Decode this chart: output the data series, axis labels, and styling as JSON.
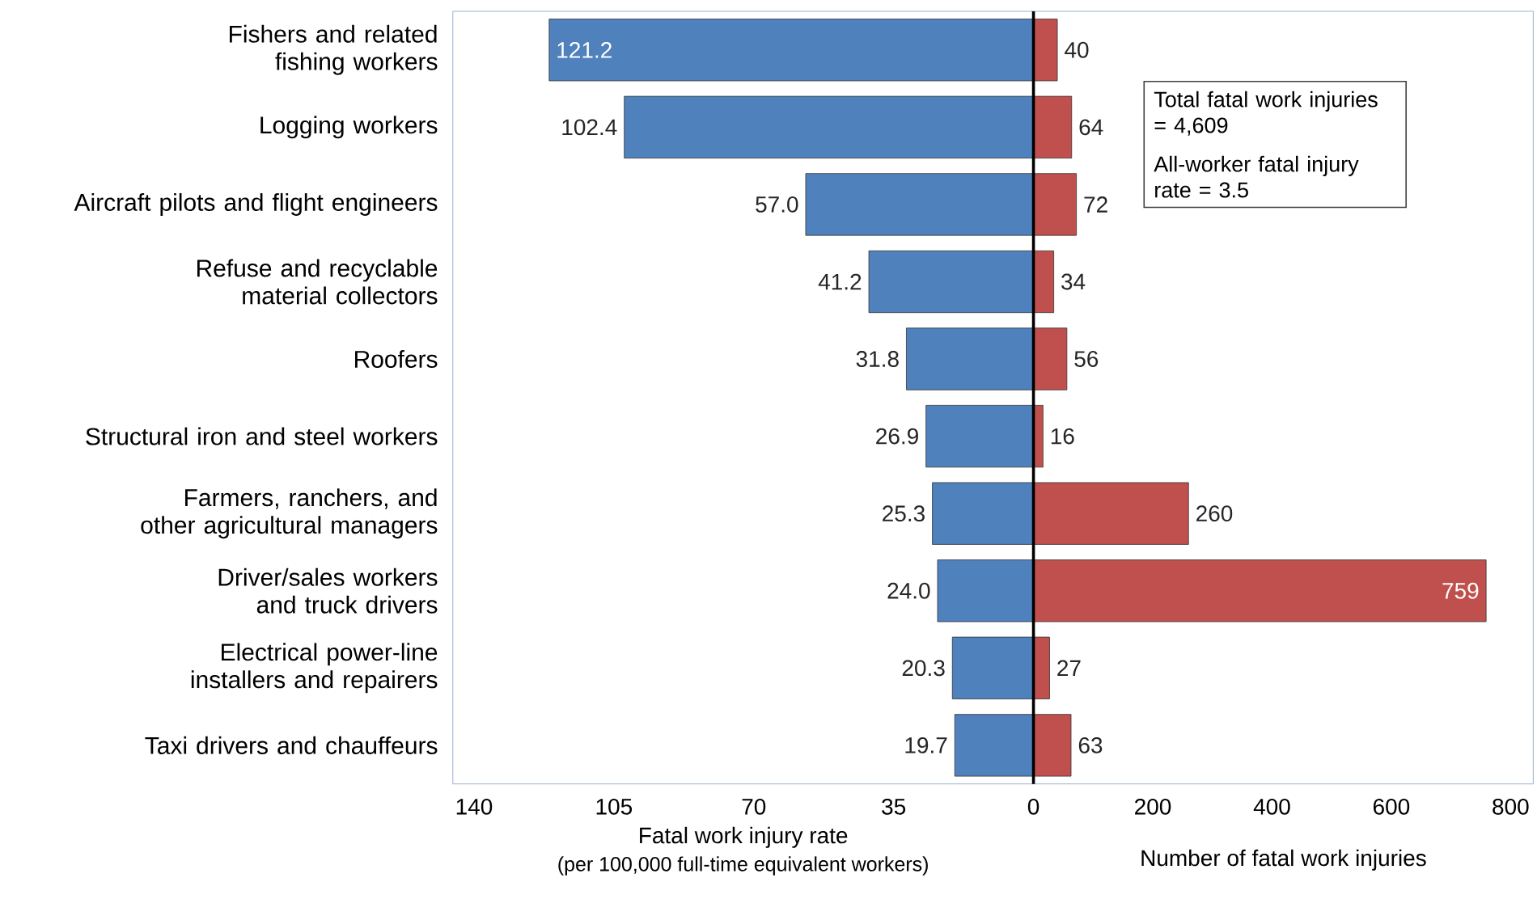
{
  "chart_data": [
    {
      "type": "bar",
      "orientation": "horizontal",
      "xlabel": "Fatal work injury rate",
      "categories": [
        "Fishers and related fishing workers",
        "Logging workers",
        "Aircraft pilots and flight engineers",
        "Refuse and recyclable material collectors",
        "Roofers",
        "Structural iron and steel workers",
        "Farmers, ranchers, and other agricultural managers",
        "Driver/sales workers and truck drivers",
        "Electrical power-line installers and repairers",
        "Taxi drivers and chauffeurs"
      ],
      "values": [
        121.2,
        102.4,
        57.0,
        41.2,
        31.8,
        26.9,
        25.3,
        24.0,
        20.3,
        19.7
      ],
      "value_labels": [
        "121.2",
        "102.4",
        "57.0",
        "41.2",
        "31.8",
        "26.9",
        "25.3",
        "24.0",
        "20.3",
        "19.7"
      ],
      "color": "#4f81bd",
      "xlim": [
        145.3,
        0
      ],
      "xticks": [
        140,
        105,
        70,
        35
      ],
      "annotations": [
        "(per 100,000 full-time equivalent workers)"
      ]
    },
    {
      "type": "bar",
      "orientation": "horizontal",
      "xlabel": "Number of fatal work injuries",
      "categories": [
        null,
        null,
        null,
        null,
        null,
        null,
        null,
        null,
        null,
        null
      ],
      "values": [
        40,
        64,
        72,
        34,
        56,
        16,
        260,
        759,
        27,
        63
      ],
      "data_labels": true,
      "tick_labels": "x",
      "color": "#c0504d",
      "xlim": [
        0,
        838
      ],
      "xticks": [
        0,
        200,
        400,
        600,
        800
      ],
      "annotations": [
        "Total fatal work injuries = 4,609",
        "All-worker fatal injury rate = 3.5"
      ]
    }
  ]
}
